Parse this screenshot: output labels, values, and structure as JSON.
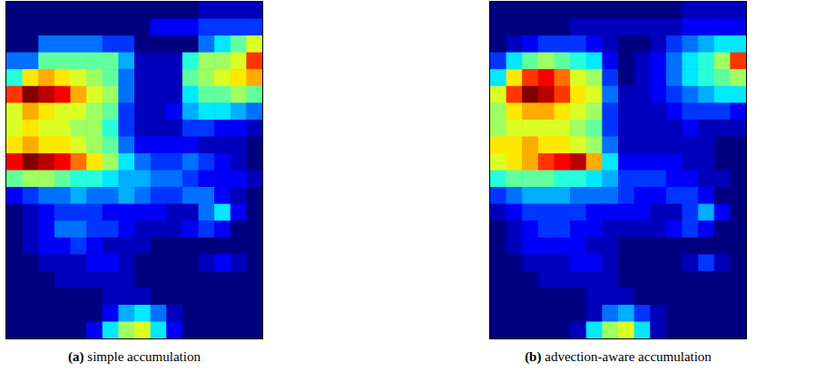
{
  "chart_data": [
    {
      "type": "heatmap",
      "title": "(a) simple accumulation",
      "tick_labels": false,
      "cells": [
        [
          0,
          0,
          0,
          0,
          0,
          0,
          0,
          0,
          0,
          0,
          0,
          0,
          0.05,
          0.05,
          0.05,
          0.05
        ],
        [
          0,
          0,
          0,
          0,
          0,
          0,
          0,
          0,
          0,
          0.1,
          0.1,
          0.1,
          0.15,
          0.15,
          0.15,
          0.15
        ],
        [
          0,
          0,
          0.2,
          0.2,
          0.2,
          0.2,
          0.15,
          0.15,
          0,
          0,
          0,
          0,
          0.2,
          0.3,
          0.4,
          0.5
        ],
        [
          0.2,
          0.2,
          0.4,
          0.4,
          0.4,
          0.4,
          0.4,
          0.25,
          0.05,
          0.05,
          0.05,
          0.35,
          0.45,
          0.45,
          0.5,
          0.7
        ],
        [
          0.35,
          0.55,
          0.6,
          0.55,
          0.5,
          0.45,
          0.4,
          0.2,
          0.05,
          0.05,
          0.05,
          0.4,
          0.45,
          0.5,
          0.55,
          0.6
        ],
        [
          0.7,
          0.85,
          0.8,
          0.75,
          0.6,
          0.5,
          0.45,
          0.2,
          0.05,
          0.05,
          0.05,
          0.3,
          0.4,
          0.4,
          0.45,
          0.4
        ],
        [
          0.5,
          0.6,
          0.55,
          0.5,
          0.5,
          0.45,
          0.4,
          0.15,
          0.05,
          0.05,
          0.1,
          0.25,
          0.3,
          0.3,
          0.25,
          0.2
        ],
        [
          0.5,
          0.55,
          0.5,
          0.5,
          0.45,
          0.45,
          0.35,
          0.15,
          0.05,
          0.05,
          0.05,
          0.15,
          0.15,
          0.1,
          0.1,
          0.05
        ],
        [
          0.55,
          0.6,
          0.55,
          0.55,
          0.5,
          0.45,
          0.4,
          0.2,
          0.1,
          0.1,
          0.1,
          0.1,
          0.05,
          0.05,
          0.05,
          0
        ],
        [
          0.75,
          0.85,
          0.8,
          0.75,
          0.65,
          0.55,
          0.45,
          0.3,
          0.2,
          0.15,
          0.15,
          0.2,
          0.15,
          0.1,
          0.05,
          0
        ],
        [
          0.4,
          0.45,
          0.45,
          0.4,
          0.35,
          0.35,
          0.3,
          0.25,
          0.25,
          0.2,
          0.2,
          0.15,
          0.1,
          0.1,
          0.1,
          0.05
        ],
        [
          0.1,
          0.15,
          0.2,
          0.2,
          0.25,
          0.2,
          0.2,
          0.25,
          0.2,
          0.15,
          0.15,
          0.2,
          0.2,
          0.1,
          0.05,
          0
        ],
        [
          0,
          0.05,
          0.1,
          0.15,
          0.15,
          0.15,
          0.1,
          0.1,
          0.1,
          0.1,
          0.05,
          0.05,
          0.2,
          0.3,
          0.1,
          0
        ],
        [
          0,
          0.05,
          0.1,
          0.2,
          0.2,
          0.15,
          0.15,
          0.1,
          0.05,
          0.05,
          0.05,
          0.1,
          0.15,
          0.1,
          0,
          0
        ],
        [
          0,
          0.05,
          0.1,
          0.1,
          0.15,
          0.1,
          0.05,
          0.05,
          0.05,
          0,
          0,
          0,
          0,
          0,
          0,
          0
        ],
        [
          0,
          0,
          0.05,
          0.05,
          0.05,
          0.1,
          0.1,
          0.05,
          0,
          0,
          0,
          0,
          0.05,
          0.1,
          0.05,
          0
        ],
        [
          0,
          0,
          0,
          0.05,
          0.05,
          0.05,
          0.05,
          0.05,
          0,
          0,
          0,
          0,
          0,
          0,
          0,
          0
        ],
        [
          0,
          0,
          0,
          0,
          0,
          0,
          0.05,
          0.05,
          0.05,
          0,
          0,
          0,
          0,
          0,
          0,
          0
        ],
        [
          0,
          0,
          0,
          0,
          0,
          0,
          0.1,
          0.25,
          0.3,
          0.2,
          0.05,
          0,
          0,
          0,
          0,
          0
        ],
        [
          0,
          0,
          0,
          0,
          0,
          0.1,
          0.3,
          0.45,
          0.5,
          0.3,
          0.1,
          0,
          0,
          0,
          0,
          0
        ]
      ]
    },
    {
      "type": "heatmap",
      "title": "(b) advection-aware accumulation",
      "tick_labels": false,
      "cells": [
        [
          0,
          0,
          0,
          0,
          0,
          0,
          0,
          0,
          0,
          0,
          0,
          0,
          0.05,
          0.05,
          0.05,
          0.05
        ],
        [
          0,
          0,
          0,
          0,
          0,
          0.05,
          0.05,
          0.05,
          0.05,
          0.05,
          0.05,
          0.05,
          0.1,
          0.1,
          0.1,
          0.1
        ],
        [
          0,
          0.05,
          0.1,
          0.15,
          0.15,
          0.15,
          0.1,
          0.05,
          0,
          0,
          0.05,
          0.15,
          0.2,
          0.25,
          0.3,
          0.3
        ],
        [
          0.15,
          0.3,
          0.4,
          0.45,
          0.4,
          0.35,
          0.3,
          0.1,
          0,
          0.05,
          0.1,
          0.2,
          0.3,
          0.35,
          0.45,
          0.7
        ],
        [
          0.3,
          0.55,
          0.7,
          0.75,
          0.65,
          0.5,
          0.45,
          0.15,
          0,
          0.05,
          0.1,
          0.2,
          0.3,
          0.35,
          0.4,
          0.45
        ],
        [
          0.5,
          0.7,
          0.85,
          0.8,
          0.7,
          0.55,
          0.5,
          0.2,
          0.05,
          0.05,
          0.1,
          0.15,
          0.2,
          0.25,
          0.3,
          0.3
        ],
        [
          0.45,
          0.55,
          0.6,
          0.6,
          0.55,
          0.5,
          0.45,
          0.15,
          0.05,
          0.05,
          0.05,
          0.1,
          0.15,
          0.15,
          0.15,
          0.1
        ],
        [
          0.45,
          0.5,
          0.5,
          0.5,
          0.5,
          0.45,
          0.4,
          0.15,
          0.05,
          0.05,
          0.05,
          0.05,
          0.1,
          0.05,
          0.05,
          0.05
        ],
        [
          0.55,
          0.55,
          0.6,
          0.55,
          0.55,
          0.5,
          0.45,
          0.2,
          0.05,
          0.05,
          0.05,
          0.05,
          0.05,
          0.05,
          0,
          0
        ],
        [
          0.5,
          0.55,
          0.6,
          0.7,
          0.75,
          0.8,
          0.6,
          0.3,
          0.1,
          0.1,
          0.1,
          0.1,
          0.05,
          0.05,
          0,
          0
        ],
        [
          0.35,
          0.4,
          0.4,
          0.4,
          0.35,
          0.35,
          0.3,
          0.25,
          0.15,
          0.15,
          0.15,
          0.1,
          0.1,
          0.05,
          0.05,
          0
        ],
        [
          0.15,
          0.2,
          0.25,
          0.25,
          0.25,
          0.2,
          0.2,
          0.2,
          0.15,
          0.1,
          0.1,
          0.15,
          0.15,
          0.1,
          0,
          0
        ],
        [
          0.05,
          0.1,
          0.15,
          0.15,
          0.15,
          0.15,
          0.1,
          0.1,
          0.1,
          0.1,
          0.05,
          0.05,
          0.15,
          0.25,
          0.1,
          0
        ],
        [
          0,
          0.05,
          0.1,
          0.15,
          0.15,
          0.1,
          0.1,
          0.05,
          0.05,
          0.05,
          0.05,
          0.1,
          0.15,
          0.1,
          0,
          0
        ],
        [
          0,
          0.05,
          0.1,
          0.1,
          0.1,
          0.1,
          0.05,
          0.05,
          0,
          0,
          0,
          0,
          0,
          0,
          0,
          0
        ],
        [
          0,
          0,
          0.05,
          0.05,
          0.05,
          0.1,
          0.1,
          0.05,
          0,
          0,
          0,
          0,
          0.05,
          0.15,
          0.05,
          0
        ],
        [
          0,
          0,
          0,
          0.05,
          0.05,
          0.05,
          0.05,
          0.05,
          0,
          0,
          0,
          0,
          0,
          0,
          0,
          0
        ],
        [
          0,
          0,
          0,
          0,
          0,
          0,
          0.05,
          0.05,
          0.05,
          0,
          0,
          0,
          0,
          0,
          0,
          0
        ],
        [
          0,
          0,
          0,
          0,
          0,
          0,
          0.05,
          0.2,
          0.25,
          0.15,
          0.05,
          0,
          0,
          0,
          0,
          0
        ],
        [
          0,
          0,
          0,
          0,
          0,
          0.05,
          0.3,
          0.45,
          0.5,
          0.3,
          0.05,
          0,
          0,
          0,
          0,
          0
        ]
      ]
    }
  ]
}
